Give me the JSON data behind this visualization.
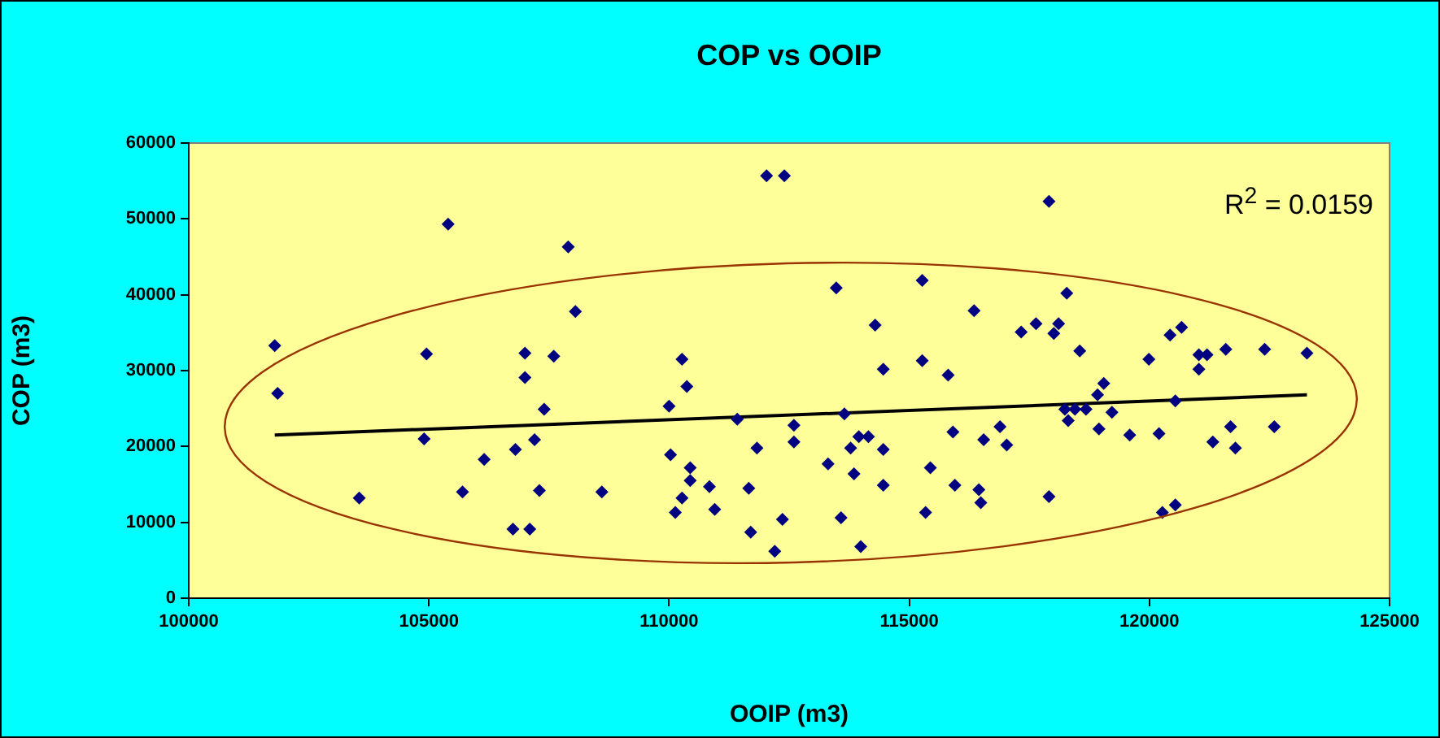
{
  "chart_data": {
    "type": "scatter",
    "title": "COP vs OOIP",
    "xlabel": "OOIP (m3)",
    "ylabel": "COP (m3)",
    "xlim": [
      100000,
      125000
    ],
    "xticks": [
      100000,
      105000,
      110000,
      115000,
      120000,
      125000
    ],
    "ylim": [
      0,
      60000
    ],
    "yticks": [
      0,
      10000,
      20000,
      30000,
      40000,
      50000,
      60000
    ],
    "grid": false,
    "legend": false,
    "marker": "diamond",
    "annotations": [
      "R$^{2}$ = 0.0159"
    ],
    "series": [
      {
        "color": "#000080",
        "x": [
          101790,
          101850,
          103550,
          104950,
          104900,
          105400,
          105700,
          106150,
          106750,
          106800,
          107000,
          107000,
          107100,
          107200,
          107300,
          107400,
          107600,
          107900,
          108050,
          108600,
          110000,
          110270,
          110370,
          110030,
          110440,
          110440,
          110840,
          110270,
          110130,
          110950,
          111420,
          111660,
          111700,
          111830,
          112030,
          112400,
          112200,
          112360,
          112600,
          112600,
          113310,
          113480,
          113580,
          113650,
          113780,
          113850,
          113950,
          114150,
          113990,
          114290,
          114460,
          114460,
          114460,
          115270,
          115270,
          115340,
          115440,
          115810,
          115910,
          115950,
          116350,
          116450,
          116490,
          116550,
          116890,
          117030,
          117910,
          117910,
          117330,
          117640,
          118010,
          118110,
          118280,
          118550,
          118240,
          118310,
          118450,
          118680,
          118920,
          119050,
          118950,
          119220,
          119590,
          119990,
          120200,
          120270,
          120540,
          120540,
          120430,
          120670,
          121030,
          121200,
          121030,
          121590,
          121320,
          121690,
          121790,
          122400,
          122600,
          123280
        ],
        "values": [
          33300,
          27000,
          13200,
          32200,
          21000,
          49300,
          14000,
          18300,
          9100,
          19600,
          32300,
          29100,
          9100,
          20900,
          14200,
          24900,
          31900,
          46300,
          37800,
          14000,
          25300,
          31500,
          27900,
          18900,
          17200,
          15500,
          14700,
          13200,
          11300,
          11700,
          23600,
          14500,
          8700,
          19800,
          55700,
          55700,
          6200,
          10400,
          22800,
          20600,
          17700,
          40900,
          10600,
          24300,
          19800,
          16400,
          21300,
          21300,
          6800,
          36000,
          30200,
          19600,
          14900,
          41900,
          31300,
          11300,
          17200,
          29400,
          21900,
          14900,
          37900,
          14300,
          12600,
          20900,
          22600,
          20200,
          52300,
          13400,
          35100,
          36200,
          34900,
          36200,
          40200,
          32600,
          24900,
          23400,
          24900,
          24900,
          26800,
          28300,
          22300,
          24500,
          21500,
          31500,
          21700,
          11300,
          12300,
          26000,
          34700,
          35700,
          32100,
          32100,
          30200,
          32800,
          20600,
          22600,
          19800,
          32800,
          22600,
          32300
        ]
      },
      {
        "type": "line",
        "color": "#000000",
        "marker": "none",
        "x": [
          101790,
          123280
        ],
        "values": [
          21500,
          26800
        ]
      }
    ]
  }
}
